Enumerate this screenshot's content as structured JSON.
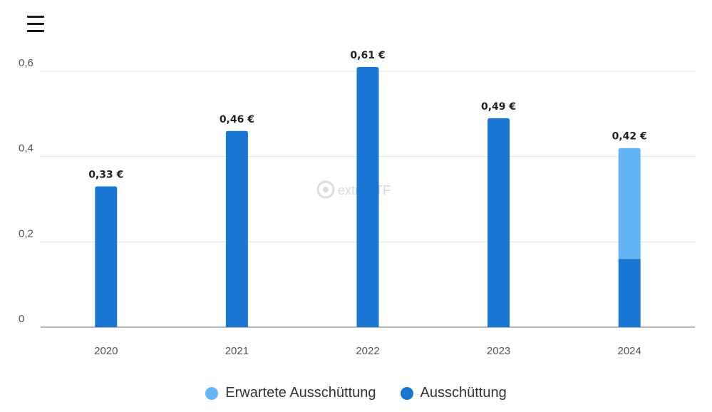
{
  "colors": {
    "expected": "#64b5f6",
    "paid": "#1976d2",
    "grid": "#e2e2e2",
    "axis": "#9e9e9e"
  },
  "watermark": "extraETF",
  "chart_data": {
    "type": "bar",
    "stacked": true,
    "categories": [
      "2020",
      "2021",
      "2022",
      "2023",
      "2024"
    ],
    "series": [
      {
        "name": "Ausschüttung",
        "values": [
          0.33,
          0.46,
          0.61,
          0.49,
          0.16
        ]
      },
      {
        "name": "Erwartete Ausschüttung",
        "values": [
          0,
          0,
          0,
          0,
          0.26
        ]
      }
    ],
    "data_labels": [
      "0,33 €",
      "0,46 €",
      "0,61 €",
      "0,49 €",
      "0,42 €"
    ],
    "y_ticks": [
      "0",
      "0,2",
      "0,4",
      "0,6"
    ],
    "y_tick_values": [
      0,
      0.2,
      0.4,
      0.6
    ],
    "ylim": [
      0,
      0.6
    ],
    "grid": true,
    "legend_position": "bottom",
    "legend": [
      {
        "label": "Erwartete Ausschüttung",
        "color": "#64b5f6"
      },
      {
        "label": "Ausschüttung",
        "color": "#1976d2"
      }
    ]
  }
}
